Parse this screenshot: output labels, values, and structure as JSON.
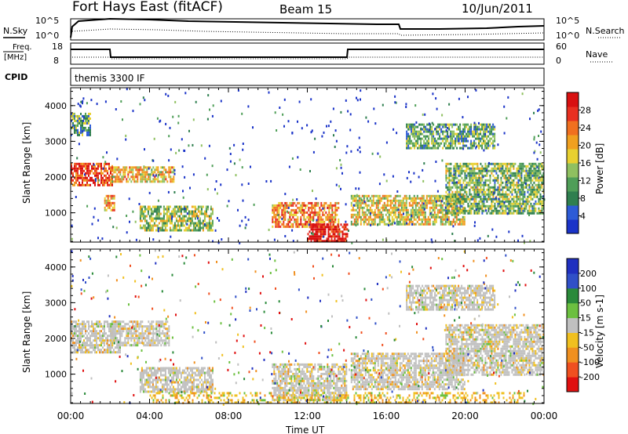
{
  "header": {
    "station": "Fort Hays East (fitACF)",
    "beam": "Beam 15",
    "date": "10/Jun/2011"
  },
  "ancillary": {
    "nsky_label": "N.Sky",
    "nsearch_label": "N.Search",
    "nsky_ticks": [
      "10^5",
      "10^0"
    ],
    "nsearch_ticks": [
      "10^5",
      "10^0"
    ],
    "freq_label_top": "Freq.",
    "freq_label_bottom": "[MHz]",
    "freq_ticks": [
      "18",
      "8"
    ],
    "nave_label": "Nave",
    "nave_ticks": [
      "60",
      "0"
    ],
    "cpid_label": "CPID",
    "cpid_value": "themis 3300 IF"
  },
  "axes": {
    "xlabel": "Time UT",
    "x_ticks": [
      "00:00",
      "04:00",
      "08:00",
      "12:00",
      "16:00",
      "20:00",
      "00:00"
    ],
    "ylabel_power": "Slant Range [km]",
    "ylabel_velocity": "Slant Range [km]",
    "y_ticks": [
      "4000",
      "3000",
      "2000",
      "1000"
    ]
  },
  "colorbars": {
    "power_label": "Power [dB]",
    "power_ticks": [
      "28",
      "24",
      "20",
      "16",
      "12",
      "8",
      "4"
    ],
    "velocity_label": "Velocity [m s-1]",
    "velocity_ticks": [
      "200",
      "100",
      "50",
      "15",
      "-15",
      "-50",
      "-100",
      "-200"
    ]
  },
  "chart_data": [
    {
      "type": "heatmap",
      "name": "Power",
      "units": "dB",
      "x_range_hours": [
        0,
        24
      ],
      "y_range_km": [
        180,
        4500
      ],
      "color_scale": [
        "#1a33c8",
        "#2d5bd6",
        "#2f7f4f",
        "#4f9e58",
        "#8fc060",
        "#e8d030",
        "#f0a020",
        "#f07020",
        "#e83020",
        "#d81010"
      ],
      "regions": [
        {
          "t": [
            0.0,
            2.1
          ],
          "r": [
            1750,
            2400
          ],
          "level": 0.85
        },
        {
          "t": [
            2.0,
            5.2
          ],
          "r": [
            1900,
            2300
          ],
          "level": 0.6
        },
        {
          "t": [
            1.7,
            2.2
          ],
          "r": [
            1100,
            1500
          ],
          "level": 0.7
        },
        {
          "t": [
            3.5,
            7.2
          ],
          "r": [
            500,
            1200
          ],
          "level": 0.45
        },
        {
          "t": [
            10.2,
            13.6
          ],
          "r": [
            600,
            1300
          ],
          "level": 0.7
        },
        {
          "t": [
            12.0,
            14.0
          ],
          "r": [
            200,
            700
          ],
          "level": 0.95
        },
        {
          "t": [
            14.2,
            20.0
          ],
          "r": [
            700,
            1500
          ],
          "level": 0.55
        },
        {
          "t": [
            19.0,
            24.0
          ],
          "r": [
            1000,
            2400
          ],
          "level": 0.4
        },
        {
          "t": [
            17.0,
            21.5
          ],
          "r": [
            2800,
            3500
          ],
          "level": 0.35
        },
        {
          "t": [
            0.0,
            1.0
          ],
          "r": [
            3200,
            3800
          ],
          "level": 0.35
        }
      ]
    },
    {
      "type": "heatmap",
      "name": "Velocity",
      "units": "m s-1",
      "x_range_hours": [
        0,
        24
      ],
      "y_range_km": [
        180,
        4500
      ],
      "color_scale": [
        "#2030c0",
        "#3050c8",
        "#2a8a3a",
        "#6cc040",
        "#c0c0c0",
        "#f0c020",
        "#f09020",
        "#f05020",
        "#e01010"
      ],
      "regions": [
        {
          "t": [
            0.0,
            2.5
          ],
          "r": [
            1600,
            2500
          ],
          "v": "ground"
        },
        {
          "t": [
            2.0,
            5.0
          ],
          "r": [
            1800,
            2500
          ],
          "v": "ground"
        },
        {
          "t": [
            3.5,
            7.2
          ],
          "r": [
            500,
            1200
          ],
          "v": "ground"
        },
        {
          "t": [
            10.2,
            14.0
          ],
          "r": [
            300,
            1300
          ],
          "v": "ground"
        },
        {
          "t": [
            14.2,
            20.0
          ],
          "r": [
            600,
            1600
          ],
          "v": "ground"
        },
        {
          "t": [
            19.0,
            24.0
          ],
          "r": [
            1000,
            2400
          ],
          "v": "ground"
        },
        {
          "t": [
            4.0,
            23.0
          ],
          "r": [
            180,
            500
          ],
          "v": "negative"
        },
        {
          "t": [
            17.0,
            21.5
          ],
          "r": [
            2800,
            3500
          ],
          "v": "ground"
        }
      ]
    }
  ]
}
